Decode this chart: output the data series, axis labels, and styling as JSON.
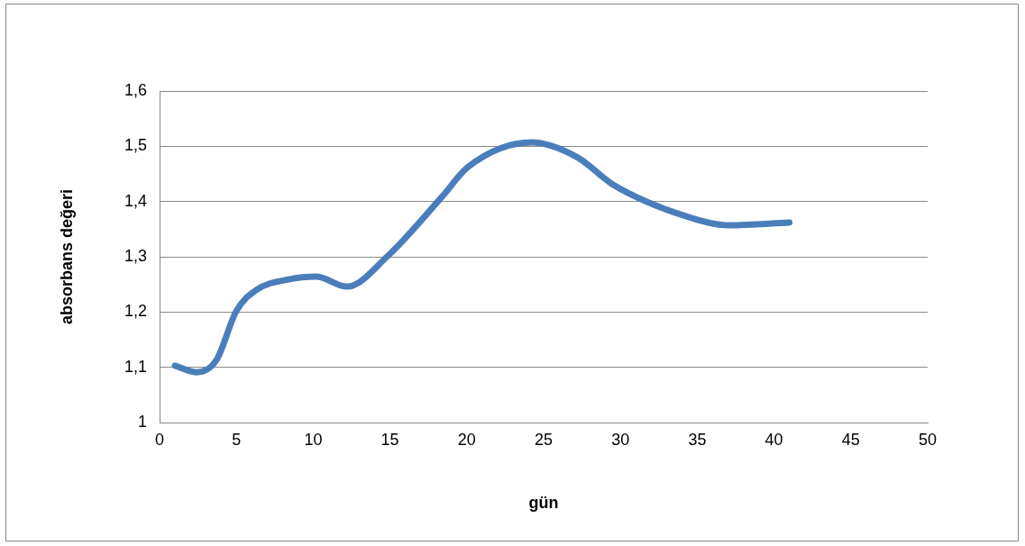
{
  "chart_data": {
    "type": "line",
    "xlabel": "gün",
    "ylabel": "absorbans değeri",
    "x": [
      1,
      2.4,
      3.7,
      5,
      6.3,
      8.4,
      10.2,
      12.2,
      14.8,
      18.4,
      20.1,
      24.2,
      27.2,
      29.5,
      34.2,
      37.1,
      41
    ],
    "series": [
      {
        "color": "#4a7ebb",
        "values": [
          1.103,
          1.091,
          1.113,
          1.202,
          1.24,
          1.259,
          1.264,
          1.246,
          1.3,
          1.409,
          1.463,
          1.507,
          1.48,
          1.431,
          1.374,
          1.357,
          1.362
        ]
      }
    ],
    "xlim": [
      0,
      50
    ],
    "xticks": [
      0,
      5,
      10,
      15,
      20,
      25,
      30,
      35,
      40,
      45,
      50
    ],
    "ylim": [
      1,
      1.6
    ],
    "yticks": [
      {
        "value": 1,
        "label": "1"
      },
      {
        "value": 1.1,
        "label": "1,1"
      },
      {
        "value": 1.2,
        "label": "1,2"
      },
      {
        "value": 1.3,
        "label": "1,3"
      },
      {
        "value": 1.4,
        "label": "1,4"
      },
      {
        "value": 1.5,
        "label": "1,5"
      },
      {
        "value": 1.6,
        "label": "1,6"
      }
    ],
    "grid": "y",
    "legend": false,
    "marker": "none",
    "line_style": "solid"
  }
}
